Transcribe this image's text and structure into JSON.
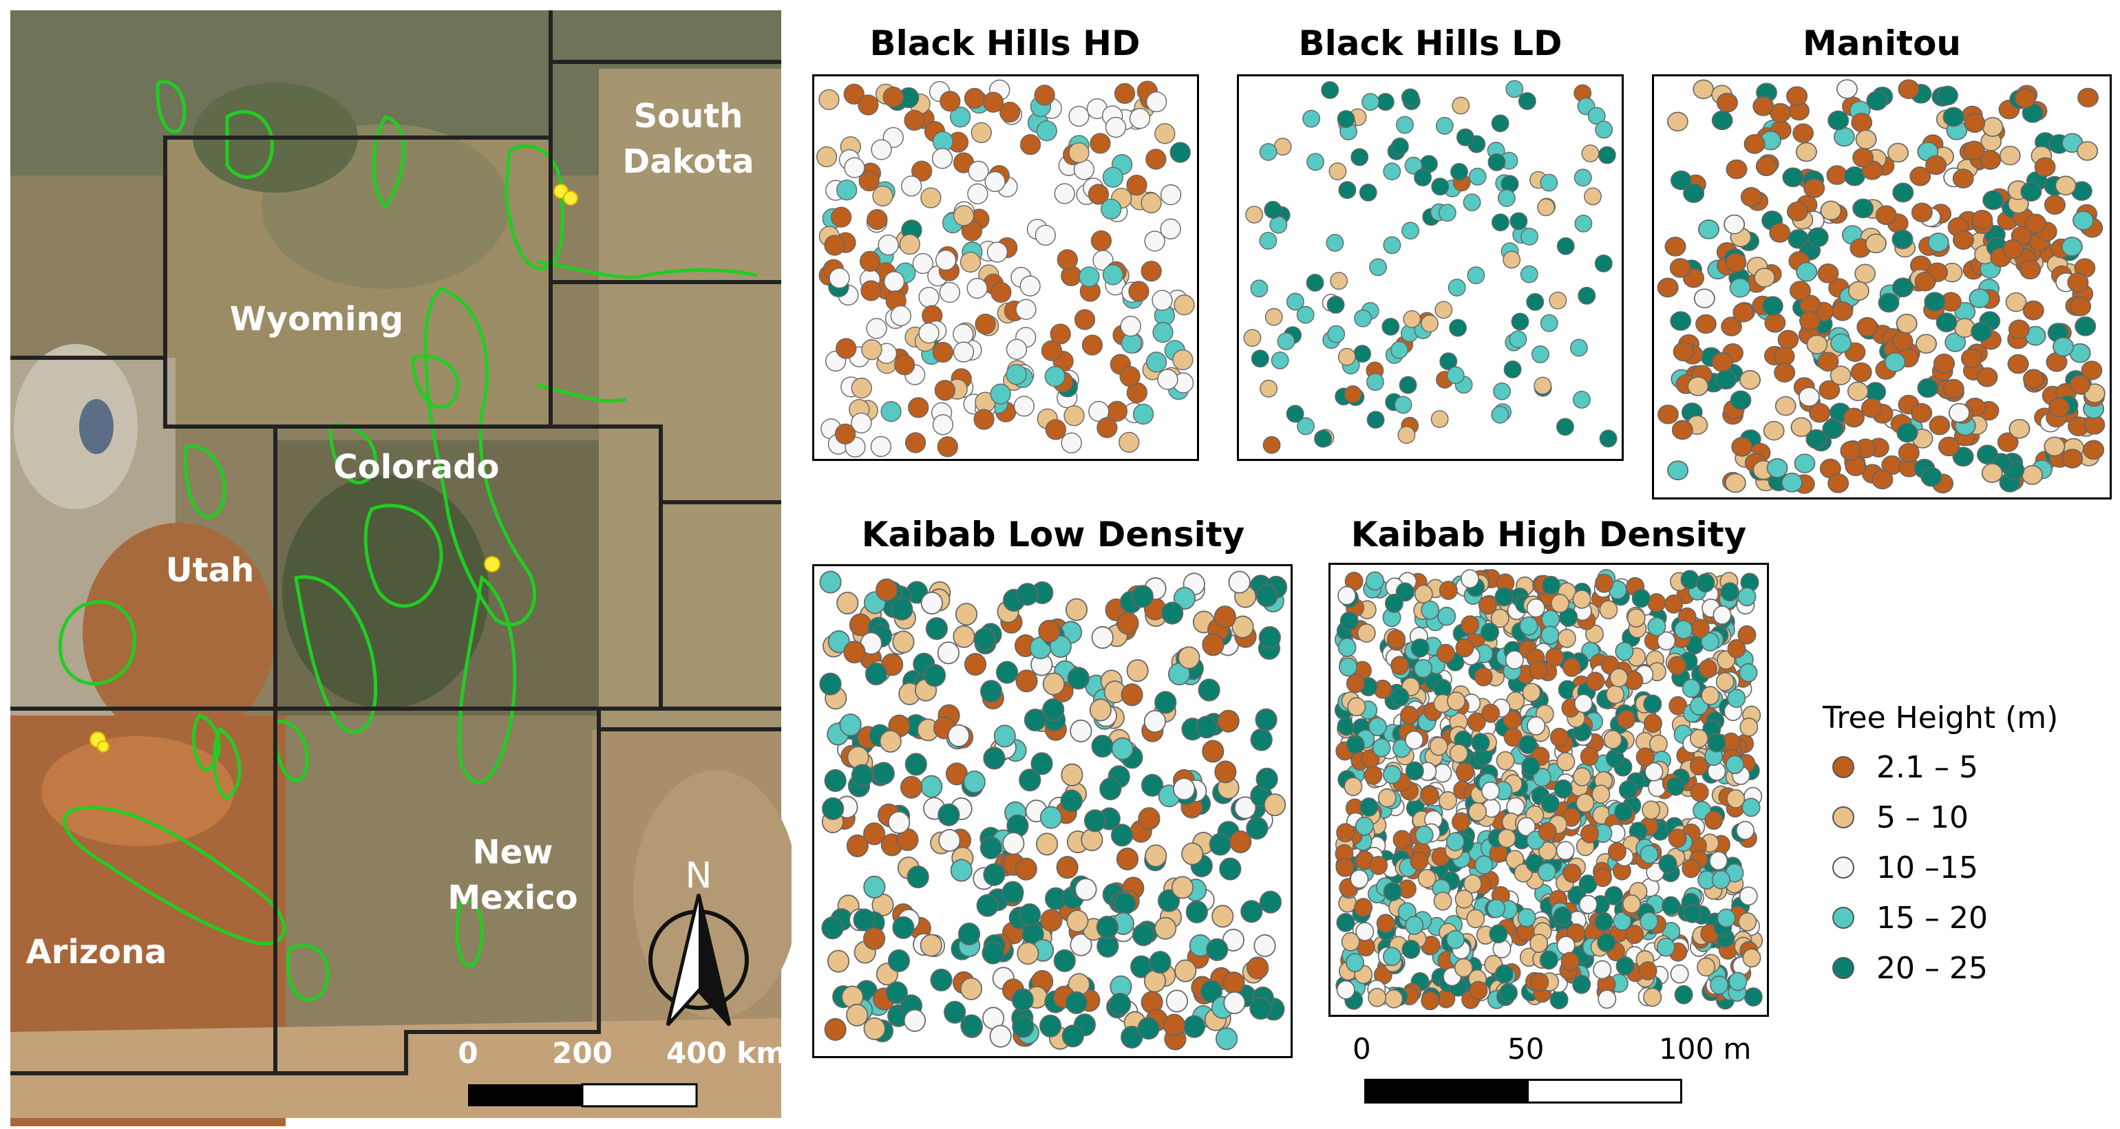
{
  "map": {
    "states": [
      {
        "id": "south-dakota",
        "lines": [
          "South",
          "Dakota"
        ]
      },
      {
        "id": "wyoming",
        "lines": [
          "Wyoming"
        ]
      },
      {
        "id": "colorado",
        "lines": [
          "Colorado"
        ]
      },
      {
        "id": "utah",
        "lines": [
          "Utah"
        ]
      },
      {
        "id": "new-mexico",
        "lines": [
          "New",
          "Mexico"
        ]
      },
      {
        "id": "arizona",
        "lines": [
          "Arizona"
        ]
      }
    ],
    "north_label": "N",
    "scalebar_labels": [
      "0",
      "200",
      "400 km"
    ],
    "colors": {
      "forest_outline": "#22cc22",
      "site_marker": "#ffee33",
      "border": "#222222"
    }
  },
  "plots": [
    {
      "id": "black-hills-hd",
      "title": "Black Hills HD"
    },
    {
      "id": "black-hills-ld",
      "title": "Black Hills LD"
    },
    {
      "id": "manitou",
      "title": "Manitou"
    },
    {
      "id": "kaibab-low-density",
      "title": "Kaibab Low Density"
    },
    {
      "id": "kaibab-high-density",
      "title": "Kaibab High Density"
    }
  ],
  "plot_scalebar_labels": [
    "0",
    "50",
    "100 m"
  ],
  "legend": {
    "title": "Tree Height (m)",
    "items": [
      {
        "label": "2.1 – 5",
        "color": "#bf5f1d"
      },
      {
        "label": "5 – 10",
        "color": "#e8c28a"
      },
      {
        "label": "10 –15",
        "color": "#f7f7f7"
      },
      {
        "label": "15 – 20",
        "color": "#55c9c2"
      },
      {
        "label": "20 – 25",
        "color": "#0b7f6e"
      }
    ]
  }
}
